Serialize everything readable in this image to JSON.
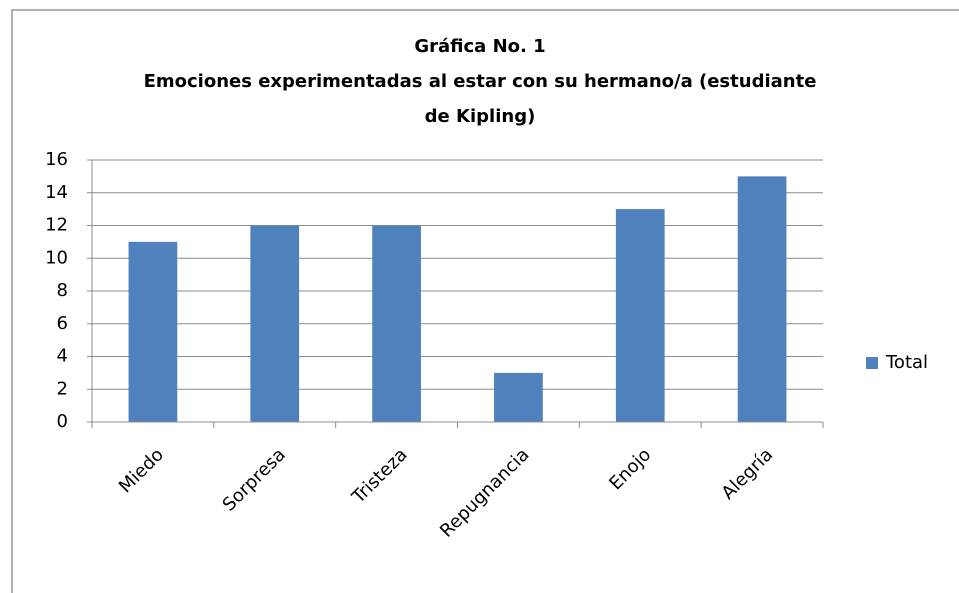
{
  "chart_data": {
    "type": "bar",
    "title": [
      "Gráfica No. 1",
      "Emociones experimentadas al estar con su hermano/a (estudiante",
      "de Kipling)"
    ],
    "categories": [
      "Miedo",
      "Sorpresa",
      "Tristeza",
      "Repugnancia",
      "Enojo",
      "Alegría"
    ],
    "series": [
      {
        "name": "Total",
        "color": "#4f81bd",
        "values": [
          11,
          12,
          12,
          3,
          13,
          15
        ]
      }
    ],
    "ylim": [
      0,
      16
    ],
    "yticks": [
      0,
      2,
      4,
      6,
      8,
      10,
      12,
      14,
      16
    ],
    "grid": true,
    "legend": "right"
  }
}
